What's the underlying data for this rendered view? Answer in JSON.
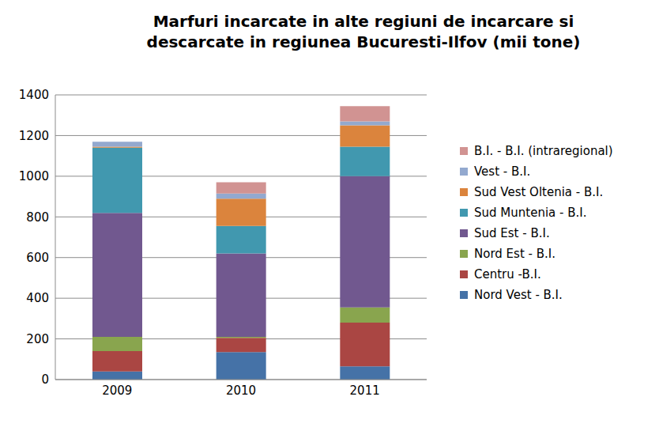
{
  "chart_data": {
    "type": "bar",
    "title": "Marfuri incarcate in alte regiuni de incarcare si descarcate in regiunea Bucuresti-Ilfov (mii tone)",
    "categories": [
      "2009",
      "2010",
      "2011"
    ],
    "series": [
      {
        "name": "Nord Vest - B.I.",
        "color": "#4572A7",
        "values": [
          40,
          135,
          65
        ]
      },
      {
        "name": "Centru -B.I.",
        "color": "#AA4643",
        "values": [
          100,
          70,
          215
        ]
      },
      {
        "name": "Nord Est - B.I.",
        "color": "#89A54E",
        "values": [
          70,
          5,
          75
        ]
      },
      {
        "name": "Sud Est - B.I.",
        "color": "#71588F",
        "values": [
          610,
          410,
          645
        ]
      },
      {
        "name": "Sud Muntenia - B.I.",
        "color": "#4198AF",
        "values": [
          320,
          135,
          145
        ]
      },
      {
        "name": "Sud Vest Oltenia - B.I.",
        "color": "#DB843D",
        "values": [
          5,
          135,
          105
        ]
      },
      {
        "name": "Vest - B.I.",
        "color": "#93A9CF",
        "values": [
          25,
          25,
          20
        ]
      },
      {
        "name": "B.I. - B.I. (intraregional)",
        "color": "#D19392",
        "values": [
          0,
          55,
          75
        ]
      }
    ],
    "ylim": [
      0,
      1400
    ],
    "yticks": [
      0,
      200,
      400,
      600,
      800,
      1000,
      1200,
      1400
    ],
    "grid": true,
    "stacked": true,
    "legend": "right"
  }
}
